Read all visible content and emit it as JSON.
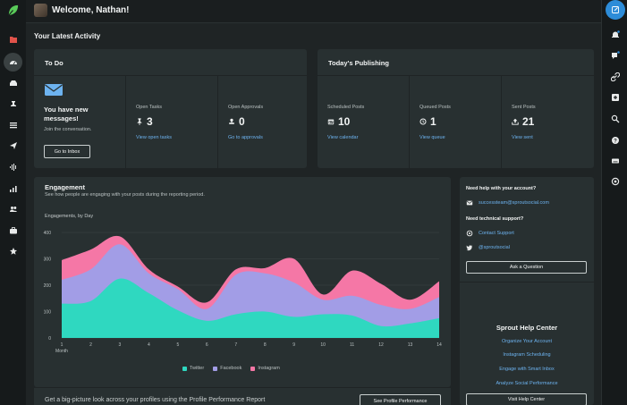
{
  "header": {
    "welcome": "Welcome, Nathan!"
  },
  "section_title": "Your Latest Activity",
  "todo": {
    "title": "To Do",
    "message_title": "You have new messages!",
    "message_sub": "Join the conversation.",
    "inbox_button": "Go to Inbox",
    "open_tasks_label": "Open Tasks",
    "open_tasks_value": "3",
    "open_tasks_link": "View open tasks",
    "open_approvals_label": "Open Approvals",
    "open_approvals_value": "0",
    "open_approvals_link": "Go to approvals"
  },
  "publishing": {
    "title": "Today's Publishing",
    "scheduled_label": "Scheduled Posts",
    "scheduled_value": "10",
    "scheduled_link": "View calendar",
    "queued_label": "Queued Posts",
    "queued_value": "1",
    "queued_link": "View queue",
    "sent_label": "Sent Posts",
    "sent_value": "21",
    "sent_link": "View sent"
  },
  "engagement": {
    "title": "Engagement",
    "subtitle": "See how people are engaging with your posts during the reporting period."
  },
  "chart_data": {
    "type": "area",
    "title": "Engagements, by Day",
    "xlabel": "Month",
    "ylabel": "",
    "x": [
      1,
      2,
      3,
      4,
      5,
      6,
      7,
      8,
      9,
      10,
      11,
      12,
      13,
      14
    ],
    "ylim": [
      0,
      400
    ],
    "yticks": [
      0,
      100,
      200,
      300,
      400
    ],
    "stacked": true,
    "series": [
      {
        "name": "Twitter",
        "color": "#2fd8c0",
        "values": [
          130,
          140,
          225,
          170,
          105,
          65,
          90,
          100,
          80,
          90,
          85,
          45,
          55,
          75
        ]
      },
      {
        "name": "Facebook",
        "color": "#a29de6",
        "values": [
          90,
          120,
          130,
          75,
          80,
          45,
          150,
          145,
          130,
          55,
          75,
          80,
          55,
          80
        ]
      },
      {
        "name": "Instagram",
        "color": "#f577a6",
        "values": [
          75,
          75,
          30,
          15,
          10,
          25,
          20,
          20,
          90,
          20,
          95,
          80,
          35,
          60
        ]
      }
    ],
    "grid": true,
    "legend_position": "bottom"
  },
  "legend": {
    "twitter": "Twitter",
    "facebook": "Facebook",
    "instagram": "Instagram"
  },
  "bottom_strip": {
    "text": "Get a big-picture look across your profiles using the Profile Performance Report",
    "button": "See Profile Performance"
  },
  "help": {
    "account_label": "Need help with your account?",
    "email": "successteam@sproutsocial.com",
    "tech_label": "Need technical support?",
    "contact": "Contact Support",
    "twitter_handle": "@sproutsocial",
    "ask_button": "Ask a Question",
    "center_title": "Sprout Help Center",
    "link_1": "Organize Your Account",
    "link_2": "Instagram Scheduling",
    "link_3": "Engage with Smart Inbox",
    "link_4": "Analyze Social Performance",
    "visit_button": "Visit Help Center"
  },
  "colors": {
    "accent": "#2d8cd8",
    "link": "#6db3f0",
    "brand": "#59cb59"
  }
}
